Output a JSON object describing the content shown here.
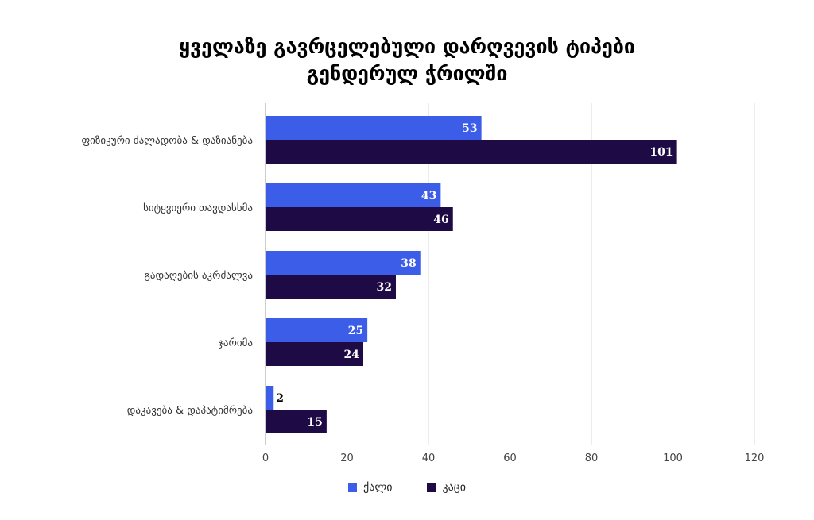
{
  "chart_data": {
    "type": "bar",
    "orientation": "horizontal",
    "title_lines": [
      "ყველაზე გავრცელებული დარღვევის ტიპები",
      "გენდერულ ჭრილში"
    ],
    "categories": [
      "ფიზიკური ძალადობა & დაზიანება",
      "სიტყვიერი თავდასხმა",
      "გადაღების აკრძალვა",
      "ჯარიმა",
      "დაკავება & დაპატიმრება"
    ],
    "series": [
      {
        "name": "ქალი",
        "color": "#3b5de7",
        "values": [
          53,
          43,
          38,
          25,
          2
        ]
      },
      {
        "name": "კაცი",
        "color": "#1e0a44",
        "values": [
          101,
          46,
          32,
          24,
          15
        ]
      }
    ],
    "xlim": [
      0,
      120
    ],
    "xticks": [
      "0",
      "20",
      "40",
      "60",
      "80",
      "100",
      "120"
    ],
    "grid": true,
    "legend": "bottom",
    "xlabel": "",
    "ylabel": ""
  }
}
